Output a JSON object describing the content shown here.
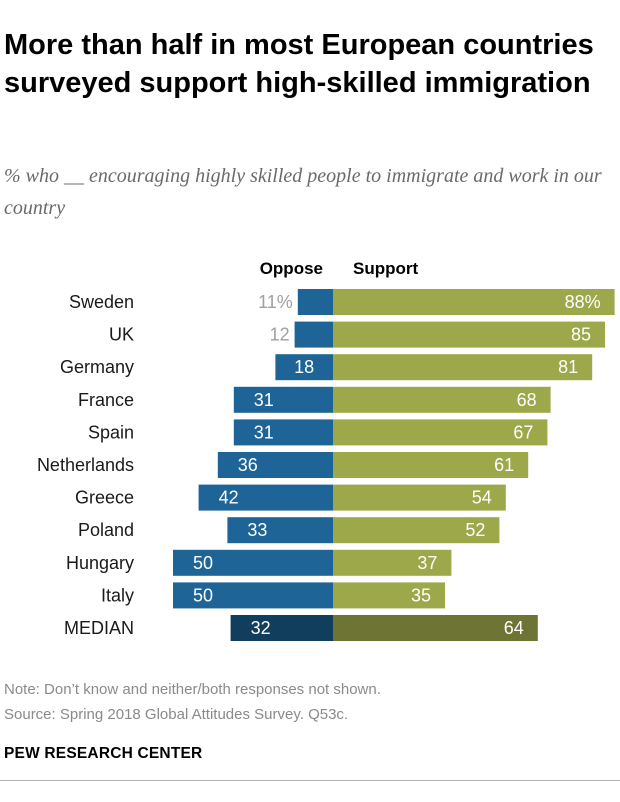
{
  "title": "More than half in most European countries surveyed support high-skilled immigration",
  "subtitle": "% who __ encouraging highly skilled people to immigrate and work in our country",
  "note": "Note: Don’t know and neither/both responses not shown.",
  "source": "Source: Spring 2018 Global Attitudes Survey. Q53c.",
  "brand": "PEW RESEARCH CENTER",
  "colors": {
    "oppose": "#1f6496",
    "support": "#9ca84a",
    "oppose_median": "#103e5c",
    "support_median": "#6d7434",
    "label_text": "#ffffff",
    "outside_label_text": "#a0a0a0"
  },
  "chart_data": {
    "type": "bar",
    "orientation": "horizontal-diverging",
    "title": "More than half in most European countries surveyed support high-skilled immigration",
    "subtitle": "% who __ encouraging highly skilled people to immigrate and work in our country",
    "categories": [
      "Sweden",
      "UK",
      "Germany",
      "France",
      "Spain",
      "Netherlands",
      "Greece",
      "Poland",
      "Hungary",
      "Italy",
      "MEDIAN"
    ],
    "series": [
      {
        "name": "Oppose",
        "values": [
          11,
          12,
          18,
          31,
          31,
          36,
          42,
          33,
          50,
          50,
          32
        ]
      },
      {
        "name": "Support",
        "values": [
          88,
          85,
          81,
          68,
          67,
          61,
          54,
          52,
          37,
          35,
          64
        ]
      }
    ],
    "oppose_labels": [
      "11%",
      "12",
      "18",
      "31",
      "31",
      "36",
      "42",
      "33",
      "50",
      "50",
      "32"
    ],
    "support_labels": [
      "88%",
      "85",
      "81",
      "68",
      "67",
      "61",
      "54",
      "52",
      "37",
      "35",
      "64"
    ],
    "median_category": "MEDIAN",
    "xlabel": "",
    "ylabel": ""
  }
}
